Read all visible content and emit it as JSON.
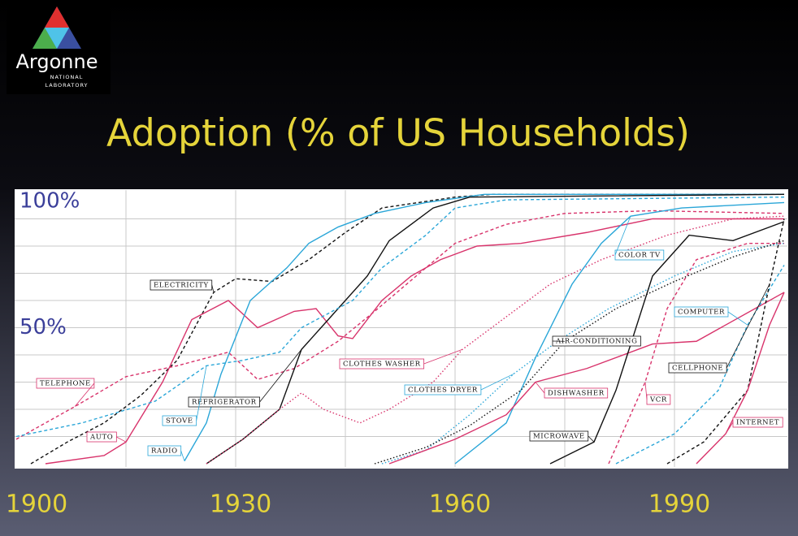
{
  "header": {
    "logo": {
      "name": "Argonne",
      "line1": "NATIONAL",
      "line2": "LABORATORY"
    }
  },
  "chart_data": {
    "type": "line",
    "title": "Adoption (% of US Households)",
    "xlim": [
      1900,
      2005
    ],
    "ylim": [
      0,
      100
    ],
    "xticks": [
      1900,
      1930,
      1960,
      1990
    ],
    "yticks": [
      {
        "value": 100,
        "label": "100%"
      },
      {
        "value": 50,
        "label": "50%"
      }
    ],
    "xgrid": [
      1915,
      1930,
      1945,
      1960,
      1975,
      1990
    ],
    "ygrid": [
      10,
      20,
      30,
      40,
      50,
      60,
      70,
      80,
      90
    ],
    "series": [
      {
        "name": "ELECTRICITY",
        "color": "#111111",
        "style": "dashed",
        "x": [
          1902,
          1907,
          1912,
          1917,
          1922,
          1927,
          1930,
          1935,
          1940,
          1945,
          1950,
          1955,
          1960,
          1965,
          2005
        ],
        "values": [
          0,
          8,
          15,
          25,
          38,
          63,
          68,
          67,
          75,
          85,
          94,
          96,
          98,
          99,
          99
        ]
      },
      {
        "name": "TELEPHONE",
        "color": "#d8336b",
        "style": "dashed",
        "x": [
          1900,
          1908,
          1915,
          1922,
          1929,
          1933,
          1938,
          1944,
          1949,
          1956,
          1960,
          1967,
          1975,
          1987,
          2005
        ],
        "values": [
          9,
          21,
          32,
          36,
          41,
          31,
          35,
          45,
          56,
          72,
          81,
          88,
          92,
          93,
          92
        ]
      },
      {
        "name": "AUTO",
        "color": "#d8336b",
        "style": "solid",
        "x": [
          1904,
          1912,
          1915,
          1920,
          1924,
          1929,
          1933,
          1938,
          1941,
          1944,
          1946,
          1950,
          1954,
          1958,
          1963,
          1969,
          1978,
          1987,
          2005
        ],
        "values": [
          0,
          3,
          8,
          30,
          53,
          60,
          50,
          56,
          57,
          47,
          46,
          60,
          69,
          75,
          80,
          81,
          85,
          90,
          90
        ]
      },
      {
        "name": "RADIO",
        "color": "#2aa6d8",
        "style": "solid",
        "x": [
          1923,
          1926,
          1928,
          1932,
          1937,
          1940,
          1944,
          1949,
          1956,
          1964,
          2005
        ],
        "values": [
          1,
          15,
          33,
          60,
          72,
          81,
          87,
          92,
          96,
          99,
          99
        ]
      },
      {
        "name": "REFRIGERATOR",
        "color": "#111111",
        "style": "solid",
        "x": [
          1926,
          1931,
          1936,
          1939,
          1943,
          1948,
          1951,
          1957,
          1962,
          2005
        ],
        "values": [
          0,
          9,
          20,
          42,
          54,
          69,
          82,
          94,
          98,
          99
        ]
      },
      {
        "name": "STOVE",
        "color": "#2aa6d8",
        "style": "dashed",
        "x": [
          1900,
          1909,
          1919,
          1926,
          1931,
          1936,
          1939,
          1946,
          1950,
          1956,
          1960,
          1967,
          2005
        ],
        "values": [
          10,
          15,
          23,
          36,
          38,
          41,
          50,
          60,
          72,
          84,
          94,
          97,
          98
        ]
      },
      {
        "name": "CLOTHES WASHER",
        "color": "#d8336b",
        "style": "dotted",
        "x": [
          1926,
          1931,
          1936,
          1939,
          1942,
          1947,
          1951,
          1957,
          1961,
          1967,
          1973,
          1980,
          1989,
          1998,
          2005
        ],
        "values": [
          0,
          9,
          20,
          26,
          20,
          15,
          20,
          30,
          42,
          54,
          66,
          75,
          84,
          90,
          91
        ]
      },
      {
        "name": "CLOTHES DRYER",
        "color": "#2aa6d8",
        "style": "dotted",
        "x": [
          1950,
          1956,
          1962,
          1968,
          1974,
          1981,
          1990,
          1998,
          2005
        ],
        "values": [
          0,
          5,
          18,
          33,
          45,
          57,
          69,
          78,
          81
        ]
      },
      {
        "name": "COLOR TV",
        "color": "#2aa6d8",
        "style": "solid",
        "x": [
          1960,
          1967,
          1971,
          1976,
          1980,
          1984,
          1991,
          2005
        ],
        "values": [
          0,
          15,
          39,
          66,
          81,
          91,
          94,
          96
        ]
      },
      {
        "name": "AIR-CONDITIONING",
        "color": "#111111",
        "style": "dotted",
        "x": [
          1949,
          1956,
          1962,
          1969,
          1975,
          1982,
          1990,
          1998,
          2005
        ],
        "values": [
          0,
          6,
          14,
          27,
          45,
          57,
          67,
          76,
          82
        ]
      },
      {
        "name": "DISHWASHER",
        "color": "#d8336b",
        "style": "solid",
        "x": [
          1951,
          1960,
          1967,
          1971,
          1978,
          1987,
          1993,
          2005
        ],
        "values": [
          0,
          9,
          18,
          30,
          35,
          44,
          45,
          63
        ]
      },
      {
        "name": "MICROWAVE",
        "color": "#111111",
        "style": "solid",
        "x": [
          1973,
          1979,
          1982,
          1987,
          1992,
          1998,
          2005
        ],
        "values": [
          0,
          8,
          27,
          69,
          84,
          82,
          89
        ]
      },
      {
        "name": "VCR",
        "color": "#d8336b",
        "style": "dashed",
        "x": [
          1981,
          1986,
          1989,
          1993,
          2000,
          2005
        ],
        "values": [
          0,
          30,
          57,
          75,
          81,
          81
        ]
      },
      {
        "name": "COMPUTER",
        "color": "#2aa6d8",
        "style": "dashed",
        "x": [
          1982,
          1990,
          1996,
          2000,
          2005
        ],
        "values": [
          0,
          11,
          27,
          51,
          73
        ]
      },
      {
        "name": "CELLPHONE",
        "color": "#111111",
        "style": "dashed",
        "x": [
          1989,
          1994,
          2000,
          2003,
          2005
        ],
        "values": [
          0,
          8,
          27,
          66,
          90
        ]
      },
      {
        "name": "INTERNET",
        "color": "#d8336b",
        "style": "solid",
        "x": [
          1993,
          1997,
          2000,
          2003,
          2005
        ],
        "values": [
          0,
          11,
          27,
          51,
          63
        ]
      }
    ]
  }
}
